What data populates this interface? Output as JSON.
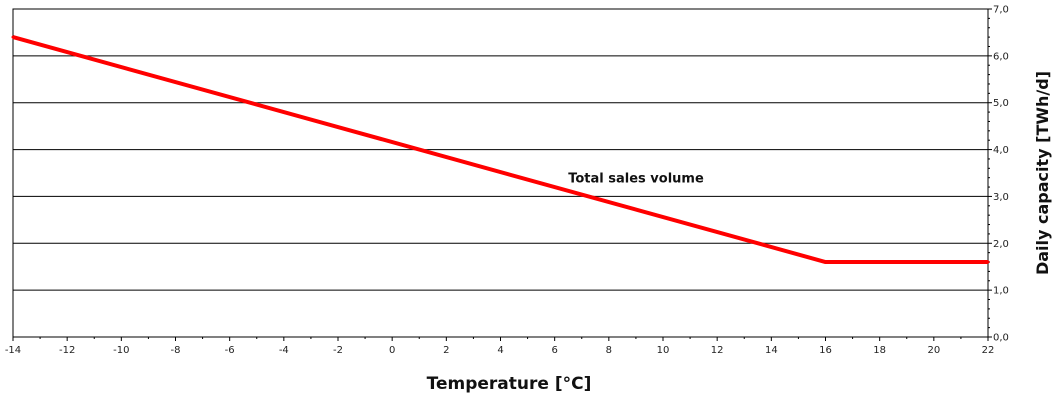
{
  "chart_data": {
    "type": "line",
    "xlabel": "Temperature [°C]",
    "ylabel": "Daily capacity [TWh/d]",
    "xlim": [
      -14,
      22
    ],
    "ylim": [
      0,
      7
    ],
    "x_ticks": [
      "-14",
      "-12",
      "-10",
      "-8",
      "-6",
      "-4",
      "-2",
      "0",
      "2",
      "4",
      "6",
      "8",
      "10",
      "12",
      "14",
      "16",
      "18",
      "20",
      "22"
    ],
    "y_ticks": [
      "0,0",
      "1,0",
      "2,0",
      "3,0",
      "4,0",
      "5,0",
      "6,0",
      "7,0"
    ],
    "y_axis_side": "right",
    "grid": "horizontal",
    "series": [
      {
        "name": "Total sales volume",
        "color": "#ff0000",
        "x": [
          -14,
          16,
          22
        ],
        "y": [
          6.4,
          1.6,
          1.6
        ]
      }
    ],
    "annotations": [
      {
        "text": "Total sales volume",
        "x": 6.5,
        "y": 3.3
      }
    ]
  }
}
